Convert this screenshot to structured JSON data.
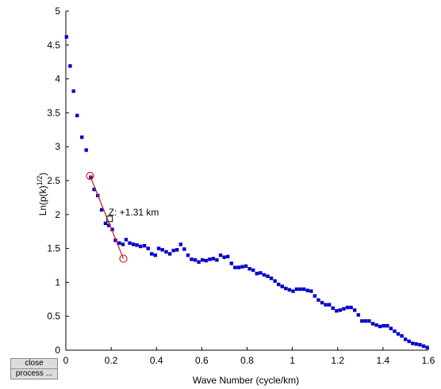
{
  "buttons": {
    "close_label": "close",
    "process_label": "process ..."
  },
  "annotation": {
    "text": "Z: +1.31 km"
  },
  "chart_data": {
    "type": "scatter",
    "title": "",
    "xlabel": "Wave Number (cycle/km)",
    "ylabel_main": "Ln(p(k)",
    "ylabel_sup": "1/2",
    "ylabel_close": ")",
    "xlim": [
      0,
      1.6
    ],
    "ylim": [
      0,
      5
    ],
    "xticks": [
      "0",
      "0.2",
      "0.4",
      "0.6",
      "0.8",
      "1",
      "1.2",
      "1.4",
      "1.6"
    ],
    "yticks": [
      "0",
      "0.5",
      "1",
      "1.5",
      "2",
      "2.5",
      "3",
      "3.5",
      "4",
      "4.5",
      "5"
    ],
    "grid": false,
    "colors": {
      "points": "#0000cc",
      "fit": "#d42020"
    },
    "x": [
      0.003,
      0.019,
      0.034,
      0.05,
      0.071,
      0.09,
      0.11,
      0.125,
      0.141,
      0.158,
      0.175,
      0.19,
      0.205,
      0.219,
      0.236,
      0.252,
      0.266,
      0.282,
      0.298,
      0.314,
      0.33,
      0.347,
      0.363,
      0.379,
      0.395,
      0.41,
      0.426,
      0.443,
      0.459,
      0.475,
      0.491,
      0.507,
      0.523,
      0.539,
      0.555,
      0.571,
      0.587,
      0.603,
      0.619,
      0.635,
      0.651,
      0.667,
      0.683,
      0.699,
      0.715,
      0.731,
      0.747,
      0.763,
      0.779,
      0.795,
      0.811,
      0.827,
      0.843,
      0.859,
      0.875,
      0.891,
      0.907,
      0.923,
      0.939,
      0.955,
      0.971,
      0.987,
      1.003,
      1.019,
      1.035,
      1.051,
      1.067,
      1.083,
      1.099,
      1.115,
      1.131,
      1.147,
      1.163,
      1.179,
      1.195,
      1.211,
      1.227,
      1.243,
      1.259,
      1.275,
      1.291,
      1.307,
      1.323,
      1.339,
      1.355,
      1.371,
      1.387,
      1.403,
      1.419,
      1.435,
      1.451,
      1.467,
      1.483,
      1.499,
      1.515,
      1.531,
      1.547,
      1.563,
      1.579,
      1.595
    ],
    "y": [
      4.62,
      4.19,
      3.82,
      3.46,
      3.14,
      2.95,
      2.55,
      2.37,
      2.28,
      2.07,
      1.87,
      1.84,
      1.78,
      1.62,
      1.58,
      1.56,
      1.63,
      1.58,
      1.56,
      1.55,
      1.53,
      1.54,
      1.5,
      1.42,
      1.4,
      1.5,
      1.48,
      1.45,
      1.42,
      1.47,
      1.48,
      1.56,
      1.49,
      1.4,
      1.34,
      1.33,
      1.3,
      1.33,
      1.32,
      1.34,
      1.35,
      1.33,
      1.4,
      1.37,
      1.38,
      1.28,
      1.22,
      1.22,
      1.23,
      1.24,
      1.2,
      1.18,
      1.13,
      1.14,
      1.11,
      1.09,
      1.06,
      1.02,
      0.97,
      0.94,
      0.91,
      0.89,
      0.87,
      0.9,
      0.9,
      0.9,
      0.88,
      0.87,
      0.8,
      0.74,
      0.7,
      0.67,
      0.67,
      0.62,
      0.58,
      0.59,
      0.61,
      0.63,
      0.63,
      0.59,
      0.52,
      0.43,
      0.43,
      0.43,
      0.39,
      0.37,
      0.35,
      0.36,
      0.36,
      0.32,
      0.28,
      0.24,
      0.21,
      0.16,
      0.13,
      0.1,
      0.09,
      0.08,
      0.06,
      0.04
    ],
    "fit_line": {
      "x": [
        0.107,
        0.254
      ],
      "y": [
        2.57,
        1.35
      ]
    },
    "fit_markers": [
      {
        "x": 0.107,
        "y": 2.57
      },
      {
        "x": 0.254,
        "y": 1.35
      }
    ],
    "annotation_point": {
      "x": 0.195,
      "y": 1.93
    }
  }
}
